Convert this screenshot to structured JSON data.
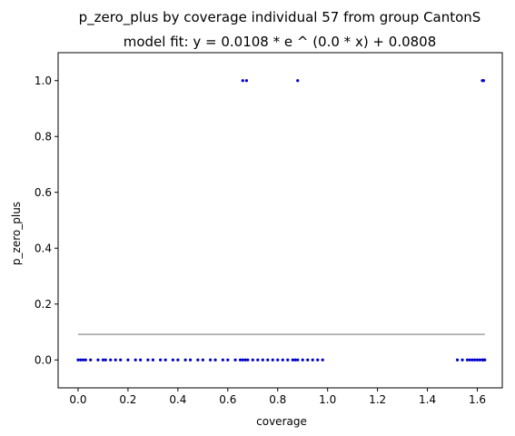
{
  "chart_data": {
    "type": "scatter",
    "title": "p_zero_plus by coverage individual 57 from group CantonS",
    "subtitle": "model fit: y = 0.0108 * e ^ (0.0 * x) + 0.0808",
    "xlabel": "coverage",
    "ylabel": "p_zero_plus",
    "xlim": [
      -0.08,
      1.7
    ],
    "ylim": [
      -0.1,
      1.1
    ],
    "xticks": [
      0.0,
      0.2,
      0.4,
      0.6,
      0.8,
      1.0,
      1.2,
      1.4,
      1.6
    ],
    "xtick_labels": [
      "0.0",
      "0.2",
      "0.4",
      "0.6",
      "0.8",
      "1.0",
      "1.2",
      "1.4",
      "1.6"
    ],
    "yticks": [
      0.0,
      0.2,
      0.4,
      0.6,
      0.8,
      1.0
    ],
    "ytick_labels": [
      "0.0",
      "0.2",
      "0.4",
      "0.6",
      "0.8",
      "1.0"
    ],
    "grid": false,
    "colors": {
      "points": "#0000cc",
      "fit_line": "#a0a0a0",
      "frame": "#000000"
    },
    "series": [
      {
        "kind": "points",
        "x": [
          0.0,
          0.01,
          0.02,
          0.03,
          0.05,
          0.08,
          0.1,
          0.11,
          0.13,
          0.15,
          0.17,
          0.2,
          0.23,
          0.25,
          0.28,
          0.3,
          0.33,
          0.35,
          0.38,
          0.4,
          0.43,
          0.45,
          0.48,
          0.5,
          0.53,
          0.55,
          0.58,
          0.6,
          0.63,
          0.65,
          0.66,
          0.67,
          0.68,
          0.7,
          0.72,
          0.74,
          0.76,
          0.78,
          0.8,
          0.82,
          0.84,
          0.86,
          0.87,
          0.88,
          0.9,
          0.92,
          0.94,
          0.96,
          0.98,
          1.52,
          1.54,
          1.56,
          1.57,
          1.58,
          1.59,
          1.6,
          1.61,
          1.62,
          1.625,
          1.63,
          0.66,
          0.675,
          0.88,
          1.62,
          1.625
        ],
        "y": [
          0,
          0,
          0,
          0,
          0,
          0,
          0,
          0,
          0,
          0,
          0,
          0,
          0,
          0,
          0,
          0,
          0,
          0,
          0,
          0,
          0,
          0,
          0,
          0,
          0,
          0,
          0,
          0,
          0,
          0,
          0,
          0,
          0,
          0,
          0,
          0,
          0,
          0,
          0,
          0,
          0,
          0,
          0,
          0,
          0,
          0,
          0,
          0,
          0,
          0,
          0,
          0,
          0,
          0,
          0,
          0,
          0,
          0,
          0,
          0,
          1,
          1,
          1,
          1,
          1
        ]
      },
      {
        "kind": "line",
        "x": [
          0.0,
          1.63
        ],
        "y": [
          0.0916,
          0.0916
        ]
      }
    ]
  }
}
